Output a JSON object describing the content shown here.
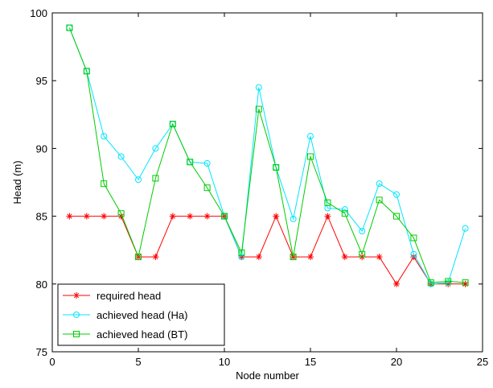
{
  "chart_data": {
    "type": "line",
    "xlabel": "Node number",
    "ylabel": "Head (m)",
    "xlim": [
      0,
      25
    ],
    "ylim": [
      75,
      100
    ],
    "xticks": [
      0,
      5,
      10,
      15,
      20,
      25
    ],
    "yticks": [
      75,
      80,
      85,
      90,
      95,
      100
    ],
    "grid": false,
    "legend_position": "bottom-left",
    "series": [
      {
        "name": "required head",
        "color": "#ff0000",
        "marker": "star",
        "x": [
          1,
          2,
          3,
          4,
          5,
          6,
          7,
          8,
          9,
          10,
          11,
          12,
          13,
          14,
          15,
          16,
          17,
          18,
          19,
          20,
          21,
          22,
          23,
          24
        ],
        "y": [
          85,
          85,
          85,
          85,
          82,
          82,
          85,
          85,
          85,
          85,
          82,
          82,
          85,
          82,
          82,
          85,
          82,
          82,
          82,
          80,
          82,
          80,
          80,
          80
        ]
      },
      {
        "name": "achieved head (Ha)",
        "color": "#00e5ff",
        "marker": "circle",
        "x": [
          1,
          2,
          3,
          4,
          5,
          6,
          7,
          8,
          9,
          10,
          11,
          12,
          13,
          14,
          15,
          16,
          17,
          18,
          19,
          20,
          21,
          22,
          23,
          24
        ],
        "y": [
          98.9,
          95.7,
          90.9,
          89.4,
          87.7,
          90.0,
          91.8,
          89.0,
          88.9,
          85.0,
          82.0,
          94.5,
          88.6,
          84.8,
          90.9,
          85.6,
          85.5,
          83.9,
          87.4,
          86.6,
          82.2,
          80.0,
          80.1,
          84.1
        ]
      },
      {
        "name": "achieved head (BT)",
        "color": "#00cc00",
        "marker": "square",
        "x": [
          1,
          2,
          3,
          4,
          5,
          6,
          7,
          8,
          9,
          10,
          11,
          12,
          13,
          14,
          15,
          16,
          17,
          18,
          19,
          20,
          21,
          22,
          23,
          24
        ],
        "y": [
          98.9,
          95.7,
          87.4,
          85.2,
          82.0,
          87.8,
          91.8,
          89.0,
          87.1,
          85.0,
          82.3,
          92.9,
          88.6,
          82.0,
          89.4,
          86.0,
          85.2,
          82.2,
          86.2,
          85.0,
          83.4,
          80.1,
          80.2,
          80.1
        ]
      }
    ]
  }
}
